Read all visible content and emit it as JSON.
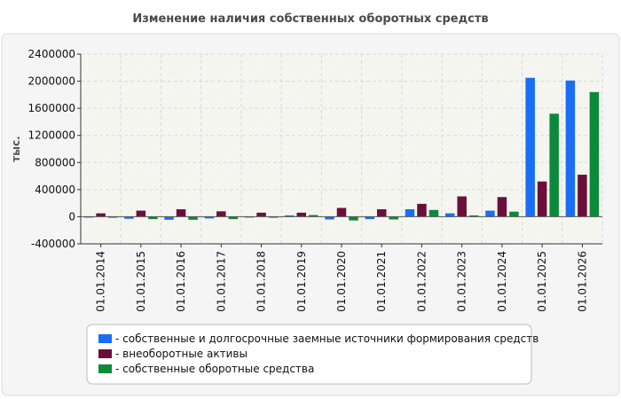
{
  "chart_data": {
    "type": "bar",
    "title": "Изменение наличия собственных оборотных средств",
    "ylabel": "тыс.",
    "xlabel": "",
    "ylim": [
      -400000,
      2400000
    ],
    "yticks": [
      2400000,
      2000000,
      1600000,
      1200000,
      800000,
      400000,
      0,
      -400000
    ],
    "categories": [
      "01.01.2014",
      "01.01.2015",
      "01.01.2016",
      "01.01.2017",
      "01.01.2018",
      "01.01.2019",
      "01.01.2020",
      "01.01.2021",
      "01.01.2022",
      "01.01.2023",
      "01.01.2024",
      "01.01.2025",
      "01.01.2026"
    ],
    "series": [
      {
        "name": "собственные и долгосрочные заемные источники формирования средств",
        "color": "#1a6ef5",
        "values": [
          -10000,
          -30000,
          -45000,
          -25000,
          -10000,
          20000,
          -40000,
          -35000,
          110000,
          50000,
          90000,
          2050000,
          2010000
        ]
      },
      {
        "name": "внеоборотные активы",
        "color": "#6b0f3a",
        "values": [
          50000,
          90000,
          110000,
          80000,
          60000,
          60000,
          130000,
          110000,
          190000,
          300000,
          290000,
          520000,
          620000
        ]
      },
      {
        "name": "собственные оборотные средства",
        "color": "#0b8a3a",
        "values": [
          -15000,
          -35000,
          -45000,
          -35000,
          -15000,
          25000,
          -55000,
          -40000,
          100000,
          20000,
          75000,
          1520000,
          1840000
        ]
      }
    ],
    "grid": true,
    "legend_position": "bottom"
  }
}
